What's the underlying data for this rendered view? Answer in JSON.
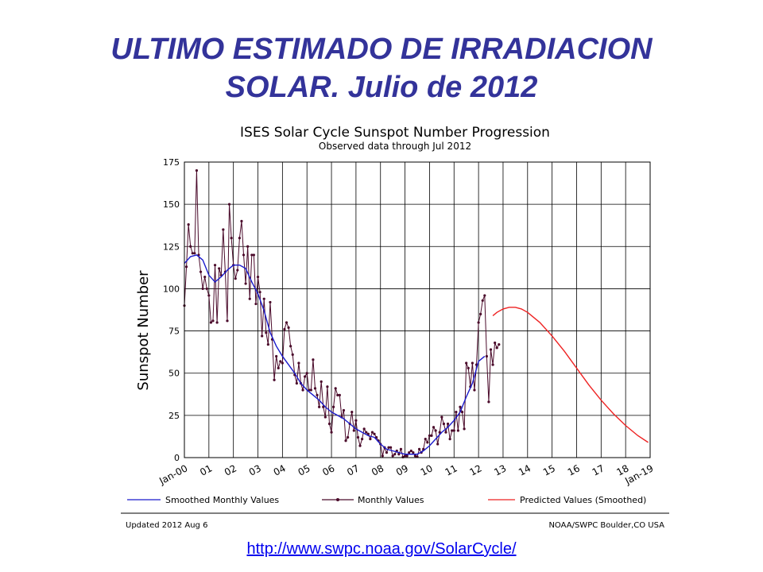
{
  "slide": {
    "title_line1": "ULTIMO ESTIMADO DE IRRADIACION",
    "title_line2": "SOLAR. Julio de 2012",
    "link": "http://www.swpc.noaa.gov/SolarCycle/"
  },
  "colors": {
    "title": "#33339a",
    "smoothed": "#1a1acc",
    "monthly": "#4a0a2a",
    "predicted": "#ee2222",
    "grid": "#000000"
  },
  "chart_data": {
    "type": "line",
    "title": "ISES Solar Cycle Sunspot Number Progression",
    "subtitle": "Observed data through Jul 2012",
    "xlabel": "",
    "ylabel": "Sunspot Number",
    "ylim": [
      0,
      175
    ],
    "xlim": [
      2000.0,
      2019.0
    ],
    "grid": true,
    "yticks": [
      0,
      25,
      50,
      75,
      100,
      125,
      150,
      175
    ],
    "x_tick_labels": [
      "Jan-00",
      "01",
      "02",
      "03",
      "04",
      "05",
      "06",
      "07",
      "08",
      "09",
      "10",
      "11",
      "12",
      "13",
      "14",
      "15",
      "16",
      "17",
      "18",
      "Jan-19"
    ],
    "legend": [
      "Smoothed Monthly Values",
      "Monthly Values",
      "Predicted Values (Smoothed)"
    ],
    "legend_placement": "bottom",
    "footer_left": "Updated 2012 Aug  6",
    "footer_right": "NOAA/SWPC Boulder,CO USA",
    "series": [
      {
        "name": "Monthly Values",
        "x_start": 2000.0,
        "x_step": 0.08333,
        "values": [
          90,
          113,
          138,
          125,
          121,
          121,
          170,
          120,
          110,
          100,
          107,
          100,
          96,
          80,
          81,
          114,
          80,
          112,
          108,
          135,
          110,
          81,
          150,
          130,
          114,
          106,
          111,
          130,
          140,
          120,
          103,
          125,
          94,
          120,
          120,
          91,
          107,
          98,
          72,
          94,
          74,
          67,
          92,
          70,
          46,
          60,
          53,
          57,
          56,
          76,
          80,
          77,
          66,
          61,
          49,
          44,
          56,
          44,
          40,
          48,
          50,
          40,
          40,
          58,
          41,
          37,
          30,
          45,
          30,
          24,
          42,
          20,
          15,
          30,
          41,
          37,
          37,
          24,
          28,
          10,
          12,
          20,
          27,
          16,
          22,
          12,
          7,
          11,
          17,
          15,
          14,
          11,
          15,
          14,
          12,
          10,
          8,
          1,
          6,
          3,
          6,
          6,
          1,
          2,
          4,
          2,
          5,
          0.3,
          1,
          1,
          3,
          4,
          3,
          1,
          0.5,
          5,
          3,
          5,
          11,
          9,
          13,
          13,
          18,
          16,
          8,
          15,
          24,
          20,
          15,
          20,
          11,
          16,
          16,
          27,
          16,
          30,
          27,
          17,
          56,
          53,
          42,
          56,
          40,
          55,
          80,
          85,
          93,
          96,
          60,
          33,
          64,
          55,
          68,
          65,
          67
        ]
      },
      {
        "name": "Smoothed Monthly Values",
        "x": [
          2000.0,
          2000.25,
          2000.5,
          2000.75,
          2001.0,
          2001.25,
          2001.5,
          2001.75,
          2002.0,
          2002.25,
          2002.5,
          2002.75,
          2003.0,
          2003.25,
          2003.5,
          2003.75,
          2004.0,
          2004.25,
          2004.5,
          2004.75,
          2005.0,
          2005.25,
          2005.5,
          2005.75,
          2006.0,
          2006.25,
          2006.5,
          2006.75,
          2007.0,
          2007.25,
          2007.5,
          2007.75,
          2008.0,
          2008.25,
          2008.5,
          2008.75,
          2009.0,
          2009.25,
          2009.5,
          2009.75,
          2010.0,
          2010.25,
          2010.5,
          2010.75,
          2011.0,
          2011.25,
          2011.5,
          2011.75,
          2012.0,
          2012.25
        ],
        "values": [
          115,
          119,
          120,
          117,
          108,
          104,
          107,
          111,
          114,
          114,
          112,
          104,
          97,
          87,
          74,
          66,
          60,
          55,
          50,
          44,
          40,
          37,
          34,
          30,
          27,
          25,
          23,
          20,
          17,
          15,
          13,
          12,
          8,
          5,
          4,
          3,
          2,
          2,
          2,
          4,
          7,
          11,
          15,
          18,
          22,
          27,
          36,
          44,
          57,
          60
        ]
      },
      {
        "name": "Predicted Values (Smoothed)",
        "x": [
          2012.583,
          2012.75,
          2013.0,
          2013.25,
          2013.5,
          2013.75,
          2014.0,
          2014.5,
          2015.0,
          2015.5,
          2016.0,
          2016.5,
          2017.0,
          2017.5,
          2018.0,
          2018.5,
          2018.92
        ],
        "values": [
          84,
          86,
          88,
          89,
          89,
          88,
          86,
          80,
          72,
          63,
          53,
          43,
          34,
          26,
          19,
          13,
          9
        ]
      }
    ]
  }
}
